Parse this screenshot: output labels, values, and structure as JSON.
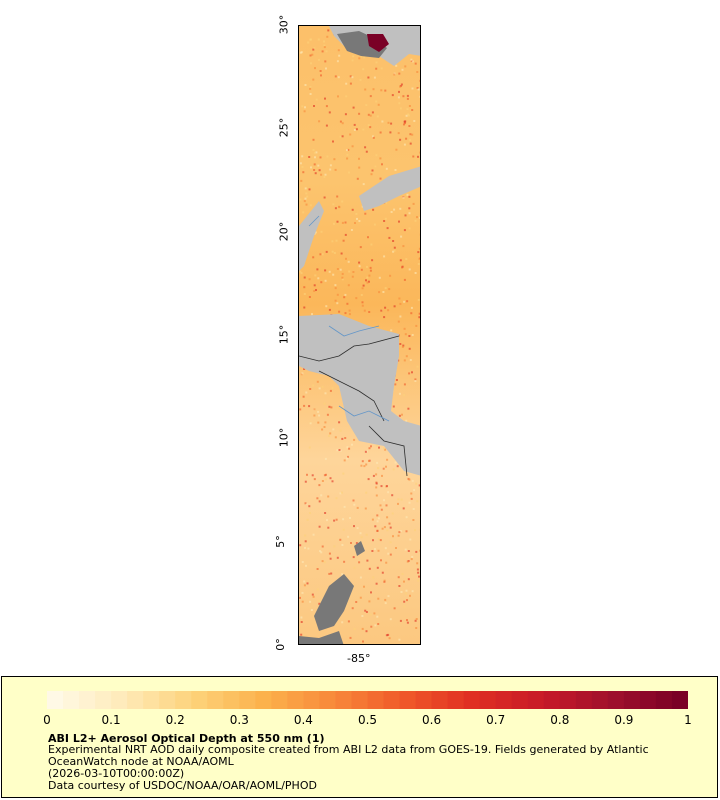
{
  "map": {
    "lat_labels": [
      "0°",
      "5°",
      "10°",
      "15°",
      "20°",
      "25°",
      "30°"
    ],
    "lon_labels": [
      "-85°"
    ],
    "colors": {
      "land": "#c0c0c0",
      "missing": "#787878",
      "borders": "#2d2d2d",
      "rivers": "#6496c8"
    }
  },
  "colorbar": {
    "min": 0,
    "max": 1,
    "tick_labels": [
      "0",
      "0.1",
      "0.2",
      "0.3",
      "0.4",
      "0.5",
      "0.6",
      "0.7",
      "0.8",
      "0.9",
      "1"
    ],
    "colors": [
      "#fff9e6",
      "#feeab8",
      "#fdd27a",
      "#fcb24c",
      "#f8893a",
      "#f05a2a",
      "#e02f22",
      "#c81a28",
      "#a0102c",
      "#7a0026"
    ]
  },
  "legend": {
    "title": "ABI L2+ Aerosol Optical Depth at 550 nm (1)",
    "line1": "Experimental NRT AOD daily composite created from ABI L2 data from GOES-19. Fields generated by Atlantic OceanWatch node at NOAA/AOML",
    "line2": "(2026-03-10T00:00:00Z)",
    "line3": "Data courtesy of USDOC/NOAA/OAR/AOML/PHOD"
  }
}
